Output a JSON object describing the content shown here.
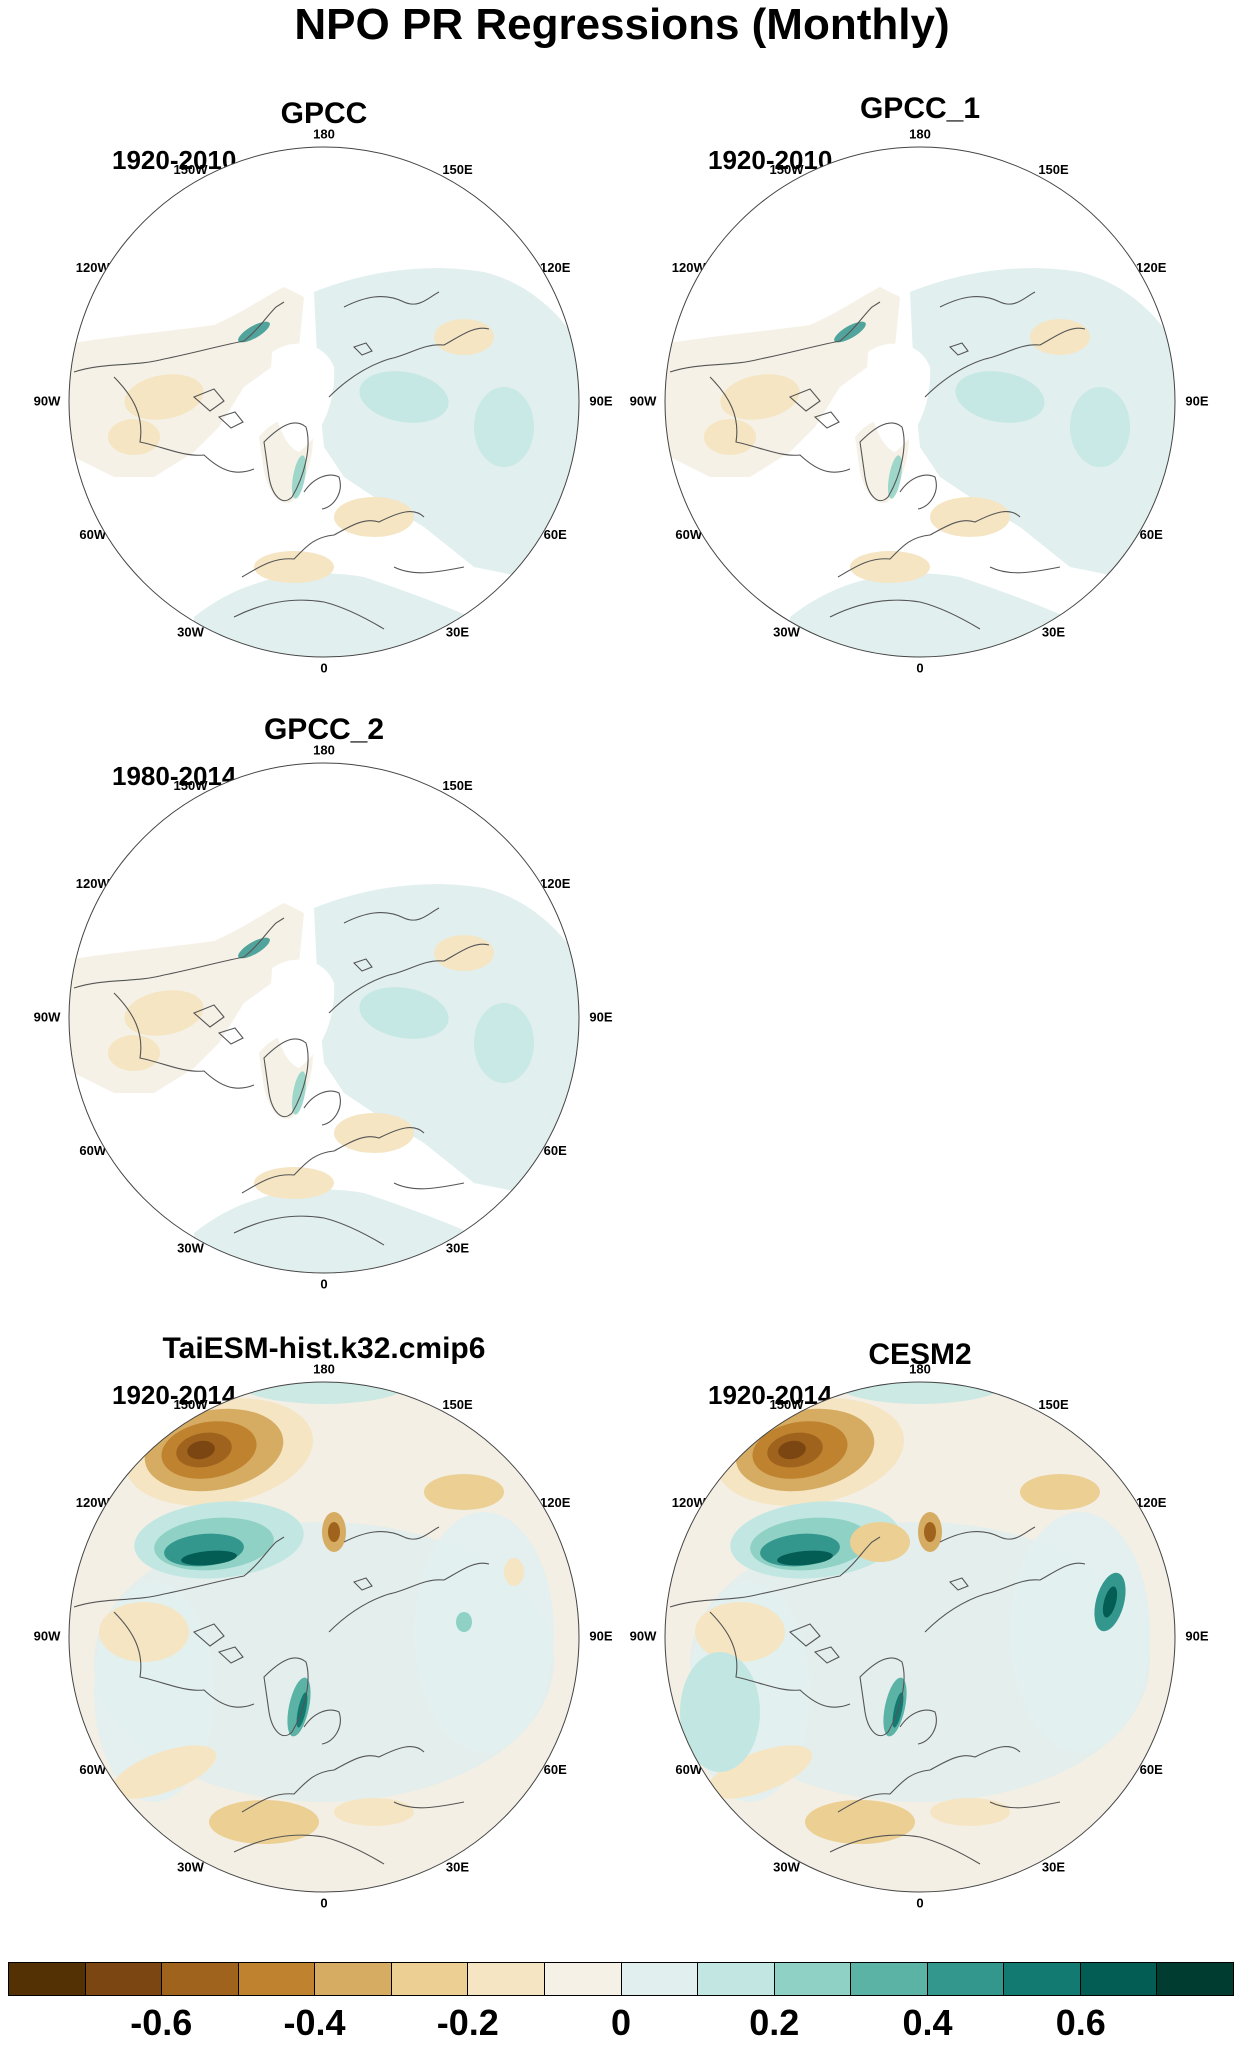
{
  "title": "NPO PR Regressions (Monthly)",
  "colors": {
    "scale": [
      "#543005",
      "#7b4611",
      "#a0631d",
      "#bf822f",
      "#d6ac62",
      "#ebcf93",
      "#f5e5c3",
      "#f5f1e6",
      "#e1efef",
      "#c2e7e2",
      "#8fd1c4",
      "#5bb3a6",
      "#34978e",
      "#137a72",
      "#045d55",
      "#003c30"
    ],
    "map_neutral": "#f4efe4",
    "coast": "#555555",
    "border": "#444444"
  },
  "panels": [
    {
      "name": "GPCC",
      "period": "1920-2010"
    },
    {
      "name": "GPCC_1",
      "period": "1920-2010"
    },
    {
      "name": "GPCC_2",
      "period": "1980-2014"
    },
    {
      "name": "TaiESM-hist.k32.cmip6",
      "period": "1920-2014"
    },
    {
      "name": "CESM2",
      "period": "1920-2014"
    }
  ],
  "lon_labels": [
    "180",
    "150E",
    "120E",
    "90E",
    "60E",
    "30E",
    "0",
    "30W",
    "60W",
    "90W",
    "120W",
    "150W"
  ],
  "colorbar": {
    "tick_labels": [
      "-0.6",
      "-0.4",
      "-0.2",
      "0",
      "0.2",
      "0.4",
      "0.6"
    ]
  },
  "chart_data": {
    "type": "heatmap",
    "title": "NPO PR Regressions (Monthly)",
    "projection": "north polar stereographic",
    "panels": [
      {
        "name": "GPCC",
        "period": "1920-2010",
        "coverage": "land only"
      },
      {
        "name": "GPCC_1",
        "period": "1920-2010",
        "coverage": "land only"
      },
      {
        "name": "GPCC_2",
        "period": "1980-2014",
        "coverage": "land only"
      },
      {
        "name": "TaiESM-hist.k32.cmip6",
        "period": "1920-2014",
        "coverage": "global"
      },
      {
        "name": "CESM2",
        "period": "1920-2014",
        "coverage": "global"
      }
    ],
    "color_levels": [
      -0.7,
      -0.6,
      -0.5,
      -0.4,
      -0.3,
      -0.2,
      -0.1,
      0,
      0.1,
      0.2,
      0.3,
      0.4,
      0.5,
      0.6,
      0.7
    ],
    "colorbar_ticks": [
      -0.6,
      -0.4,
      -0.2,
      0,
      0.2,
      0.4,
      0.6
    ],
    "legend": "bottom"
  }
}
